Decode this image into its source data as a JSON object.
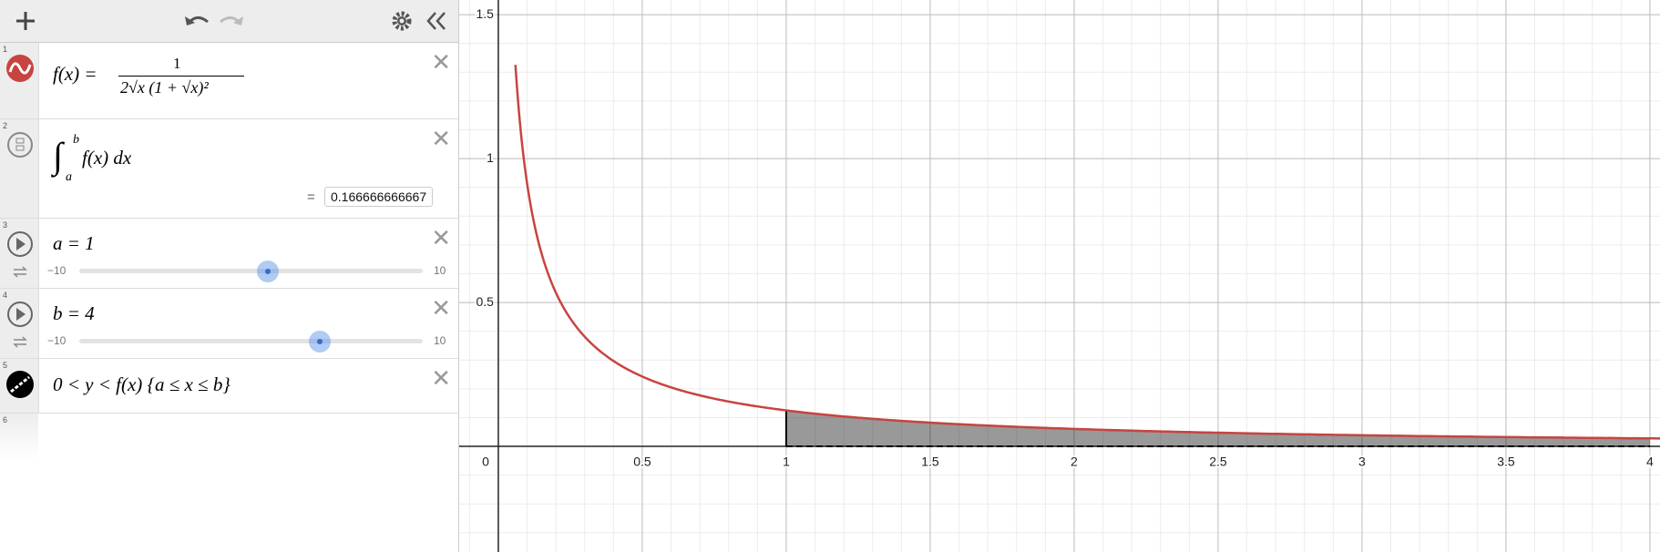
{
  "expressions": [
    {
      "number": "1",
      "lhs": "f(x) =",
      "numerator": "1",
      "denominator": "2√x (1 + √x)²"
    },
    {
      "number": "2",
      "symbol": "∫",
      "upper": "b",
      "lower": "a",
      "body": "f(x) dx",
      "equals": "=",
      "result": "0.166666666667"
    },
    {
      "number": "3",
      "label": "a = 1",
      "value": 1,
      "min": {
        "value": -10,
        "label": "−10"
      },
      "max": 10
    },
    {
      "number": "4",
      "label": "b = 4",
      "value": 4,
      "min": {
        "value": -10,
        "label": "−10"
      },
      "max": 10
    },
    {
      "number": "5",
      "label": "0 < y < f(x) {a ≤ x ≤ b}"
    },
    {
      "number": "6"
    }
  ],
  "graph": {
    "xlim": [
      -0.136,
      4.035
    ],
    "ylim": [
      -0.367,
      1.551
    ],
    "xticks": [
      0.5,
      1,
      1.5,
      2,
      2.5,
      3,
      3.5,
      4
    ],
    "yticks": [
      0.5,
      1,
      1.5
    ],
    "origin_label": "0",
    "minor_step": 0.1,
    "curve_color": "#c74440",
    "shade_color": "#000000"
  }
}
